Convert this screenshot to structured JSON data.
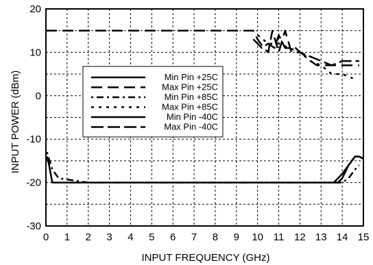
{
  "chart_data": {
    "type": "line",
    "xlabel": "INPUT FREQUENCY (GHz)",
    "ylabel": "INPUT POWER (dBm)",
    "xlim": [
      0,
      15
    ],
    "ylim": [
      -30,
      20
    ],
    "x_ticks": [
      "0",
      "1",
      "2",
      "3",
      "4",
      "5",
      "6",
      "7",
      "8",
      "9",
      "10",
      "11",
      "12",
      "13",
      "14",
      "15"
    ],
    "y_ticks": [
      "-30",
      "-20",
      "-10",
      "0",
      "10",
      "20"
    ],
    "grid": true,
    "legend_position": "center-left",
    "series": [
      {
        "name": "Min Pin +25C",
        "style": "solid",
        "x": [
          0.05,
          0.15,
          0.3,
          0.5,
          2,
          4,
          6,
          8,
          10,
          12,
          13,
          13.5,
          13.8,
          14,
          14.3,
          14.6,
          14.8,
          15
        ],
        "y": [
          -14,
          -16,
          -20,
          -20,
          -20,
          -20,
          -20,
          -20,
          -20,
          -20,
          -20,
          -20,
          -20,
          -19,
          -16,
          -14,
          -14,
          -14.5
        ]
      },
      {
        "name": "Max Pin +25C",
        "style": "longdash",
        "x": [
          0,
          1,
          3,
          5,
          7,
          9,
          9.8,
          10,
          10.3,
          10.5,
          10.7,
          11,
          11.3,
          11.6,
          12,
          12.3,
          12.5,
          12.8,
          13,
          13.5,
          14,
          14.5,
          14.8
        ],
        "y": [
          15,
          15,
          15,
          15,
          15,
          15,
          15,
          13,
          11,
          10,
          15,
          10,
          15,
          10,
          10,
          9,
          8,
          7,
          7,
          7,
          7,
          7,
          7
        ]
      },
      {
        "name": "Min Pin +85C",
        "style": "dashdot",
        "x": [
          0.05,
          0.3,
          0.6,
          2,
          5,
          8,
          11,
          13,
          13.7,
          14,
          14.3,
          14.6,
          14.8
        ],
        "y": [
          -13,
          -17,
          -19,
          -20,
          -20,
          -20,
          -20,
          -20,
          -20,
          -20,
          -19,
          -17,
          -16
        ]
      },
      {
        "name": "Max Pin +85C",
        "style": "dotted",
        "x": [
          10,
          10.5,
          11,
          11.5,
          12,
          12.5,
          13,
          13.5,
          14,
          14.5
        ],
        "y": [
          14,
          12,
          12,
          11,
          10,
          8,
          7,
          5,
          5,
          4
        ]
      },
      {
        "name": "Min Pin -40C",
        "style": "solid",
        "x": [
          13.6,
          13.8,
          14,
          14.3,
          14.6,
          14.8,
          15
        ],
        "y": [
          -20,
          -19,
          -18,
          -16,
          -14,
          -14,
          -14.5
        ]
      },
      {
        "name": "Max Pin -40C",
        "style": "longdash2",
        "x": [
          9.8,
          10.2,
          10.5,
          10.8,
          11,
          11.3,
          11.5,
          11.8,
          12,
          12.5,
          13,
          13.5,
          14,
          14.5,
          14.8
        ],
        "y": [
          13,
          11,
          12,
          11,
          14,
          11,
          11,
          11,
          10,
          9,
          8,
          7,
          8,
          8,
          8
        ]
      }
    ]
  }
}
